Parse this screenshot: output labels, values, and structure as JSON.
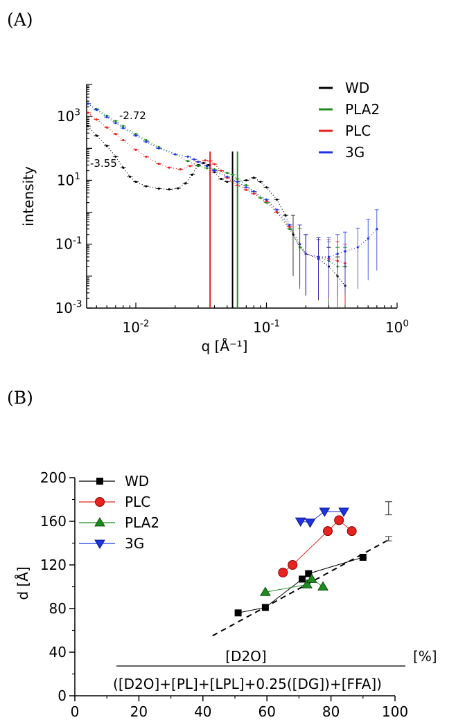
{
  "panels": [
    {
      "label": "(A)"
    },
    {
      "label": "(B)"
    }
  ],
  "chart_data": [
    {
      "type": "scatter",
      "panel": "(A)",
      "xlabel": "q [Å⁻¹]",
      "ylabel": "intensity",
      "xscale": "log",
      "yscale": "log",
      "xlim": [
        0.0042,
        1.0
      ],
      "ylim": [
        0.001,
        10000
      ],
      "x_tick_labels": [
        "10^-2",
        "10^-1",
        "10^0"
      ],
      "y_tick_labels": [
        "10^-3",
        "10^-1",
        "10^1",
        "10^3"
      ],
      "annotations": [
        "-2.72",
        "-3.55"
      ],
      "legend": {
        "placement": "top-right"
      },
      "series": [
        {
          "name": "WD",
          "color": "#000000",
          "points": [
            [
              0.0043,
              500
            ],
            [
              0.005,
              250
            ],
            [
              0.006,
              120
            ],
            [
              0.007,
              55
            ],
            [
              0.008,
              25
            ],
            [
              0.009,
              13
            ],
            [
              0.01,
              9
            ],
            [
              0.012,
              6.5
            ],
            [
              0.015,
              5.5
            ],
            [
              0.018,
              5.2
            ],
            [
              0.021,
              5.6
            ],
            [
              0.024,
              8
            ],
            [
              0.027,
              15
            ],
            [
              0.03,
              30
            ],
            [
              0.033,
              35
            ],
            [
              0.036,
              30
            ],
            [
              0.04,
              18
            ],
            [
              0.045,
              11
            ],
            [
              0.05,
              9
            ],
            [
              0.06,
              9
            ],
            [
              0.07,
              10
            ],
            [
              0.08,
              12
            ],
            [
              0.09,
              9
            ],
            [
              0.1,
              6
            ],
            [
              0.12,
              2.5
            ],
            [
              0.14,
              0.8
            ],
            [
              0.16,
              0.2
            ],
            [
              0.18,
              0.08
            ],
            [
              0.2,
              0.05
            ],
            [
              0.25,
              0.035
            ],
            [
              0.3,
              0.02
            ],
            [
              0.35,
              0.01
            ],
            [
              0.4,
              0.005
            ]
          ],
          "bragg_line_q": 0.055
        },
        {
          "name": "PLA2",
          "color": "#1f8c1f",
          "points": [
            [
              0.0043,
              2500
            ],
            [
              0.005,
              1700
            ],
            [
              0.006,
              1050
            ],
            [
              0.007,
              720
            ],
            [
              0.008,
              500
            ],
            [
              0.01,
              280
            ],
            [
              0.012,
              180
            ],
            [
              0.015,
              110
            ],
            [
              0.02,
              65
            ],
            [
              0.025,
              40
            ],
            [
              0.03,
              28
            ],
            [
              0.035,
              24
            ],
            [
              0.04,
              22
            ],
            [
              0.045,
              20
            ],
            [
              0.05,
              17
            ],
            [
              0.055,
              15
            ],
            [
              0.06,
              11
            ],
            [
              0.07,
              7
            ],
            [
              0.08,
              4.5
            ],
            [
              0.09,
              2.8
            ],
            [
              0.1,
              2
            ],
            [
              0.12,
              1
            ],
            [
              0.15,
              0.3
            ],
            [
              0.18,
              0.08
            ],
            [
              0.2,
              0.05
            ],
            [
              0.25,
              0.04
            ],
            [
              0.3,
              0.03
            ],
            [
              0.35,
              0.02
            ],
            [
              0.4,
              0.02
            ]
          ],
          "bragg_line_q": 0.06
        },
        {
          "name": "PLC",
          "color": "#e8221f",
          "points": [
            [
              0.0043,
              1300
            ],
            [
              0.005,
              800
            ],
            [
              0.006,
              450
            ],
            [
              0.007,
              280
            ],
            [
              0.008,
              180
            ],
            [
              0.01,
              90
            ],
            [
              0.012,
              55
            ],
            [
              0.015,
              33
            ],
            [
              0.018,
              25
            ],
            [
              0.022,
              22
            ],
            [
              0.026,
              28
            ],
            [
              0.03,
              38
            ],
            [
              0.034,
              42
            ],
            [
              0.037,
              40
            ],
            [
              0.04,
              32
            ],
            [
              0.045,
              20
            ],
            [
              0.05,
              12
            ],
            [
              0.06,
              7
            ],
            [
              0.07,
              5
            ],
            [
              0.08,
              3.8
            ],
            [
              0.1,
              2.2
            ],
            [
              0.12,
              1
            ],
            [
              0.15,
              0.35
            ],
            [
              0.18,
              0.1
            ],
            [
              0.2,
              0.05
            ],
            [
              0.25,
              0.04
            ],
            [
              0.3,
              0.035
            ],
            [
              0.35,
              0.03
            ],
            [
              0.4,
              0.025
            ]
          ],
          "bragg_line_q": 0.037
        },
        {
          "name": "3G",
          "color": "#1f33e6",
          "points": [
            [
              0.0043,
              2500
            ],
            [
              0.005,
              1600
            ],
            [
              0.006,
              950
            ],
            [
              0.007,
              620
            ],
            [
              0.008,
              430
            ],
            [
              0.01,
              250
            ],
            [
              0.012,
              160
            ],
            [
              0.015,
              100
            ],
            [
              0.02,
              65
            ],
            [
              0.025,
              55
            ],
            [
              0.028,
              45
            ],
            [
              0.03,
              38
            ],
            [
              0.035,
              28
            ],
            [
              0.04,
              20
            ],
            [
              0.05,
              13
            ],
            [
              0.06,
              9
            ],
            [
              0.07,
              6
            ],
            [
              0.08,
              4.5
            ],
            [
              0.1,
              2.5
            ],
            [
              0.12,
              1.2
            ],
            [
              0.15,
              0.4
            ],
            [
              0.18,
              0.1
            ],
            [
              0.2,
              0.05
            ],
            [
              0.25,
              0.04
            ],
            [
              0.3,
              0.04
            ],
            [
              0.35,
              0.05
            ],
            [
              0.4,
              0.06
            ],
            [
              0.5,
              0.08
            ],
            [
              0.6,
              0.15
            ],
            [
              0.7,
              0.3
            ]
          ]
        }
      ]
    },
    {
      "type": "scatter",
      "panel": "(B)",
      "ylabel": "d [Å]",
      "xlabel_numerator": "[D2O]",
      "xlabel_denominator": "([D2O]+[PL]+[LPL]+0.25([DG])+[FFA])",
      "xlabel_unit": "[%]",
      "xlim": [
        0,
        100
      ],
      "ylim": [
        0,
        200
      ],
      "x_ticks": [
        0,
        20,
        40,
        60,
        80,
        100
      ],
      "y_ticks": [
        0,
        40,
        80,
        120,
        160,
        200
      ],
      "legend": {
        "placement": "top-left"
      },
      "series": [
        {
          "name": "WD",
          "color": "#000000",
          "marker": "square",
          "points": [
            [
              51,
              76
            ],
            [
              59.5,
              81
            ],
            [
              71,
              107
            ],
            [
              73,
              112
            ],
            [
              90,
              127
            ]
          ]
        },
        {
          "name": "PLC",
          "color": "#e8221f",
          "marker": "circle",
          "points": [
            [
              65,
              113
            ],
            [
              68,
              120
            ],
            [
              79,
              151
            ],
            [
              82.5,
              161
            ],
            [
              86.5,
              151
            ]
          ]
        },
        {
          "name": "PLA2",
          "color": "#1f8c1f",
          "marker": "triangle-up",
          "points": [
            [
              59.5,
              95
            ],
            [
              72.5,
              102
            ],
            [
              74,
              107
            ],
            [
              77.5,
              100
            ]
          ]
        },
        {
          "name": "3G",
          "color": "#1f33e6",
          "marker": "triangle-down",
          "points": [
            [
              70.5,
              160
            ],
            [
              73.5,
              159
            ],
            [
              78,
              169
            ],
            [
              84,
              169
            ]
          ]
        }
      ],
      "fit_line": {
        "style": "dashed",
        "points": [
          [
            43,
            55
          ],
          [
            98,
            143
          ]
        ]
      },
      "error_bars": [
        {
          "x": 98,
          "y": 144,
          "err": 2
        },
        {
          "x": 98,
          "y": 172,
          "err": 6
        }
      ]
    }
  ]
}
